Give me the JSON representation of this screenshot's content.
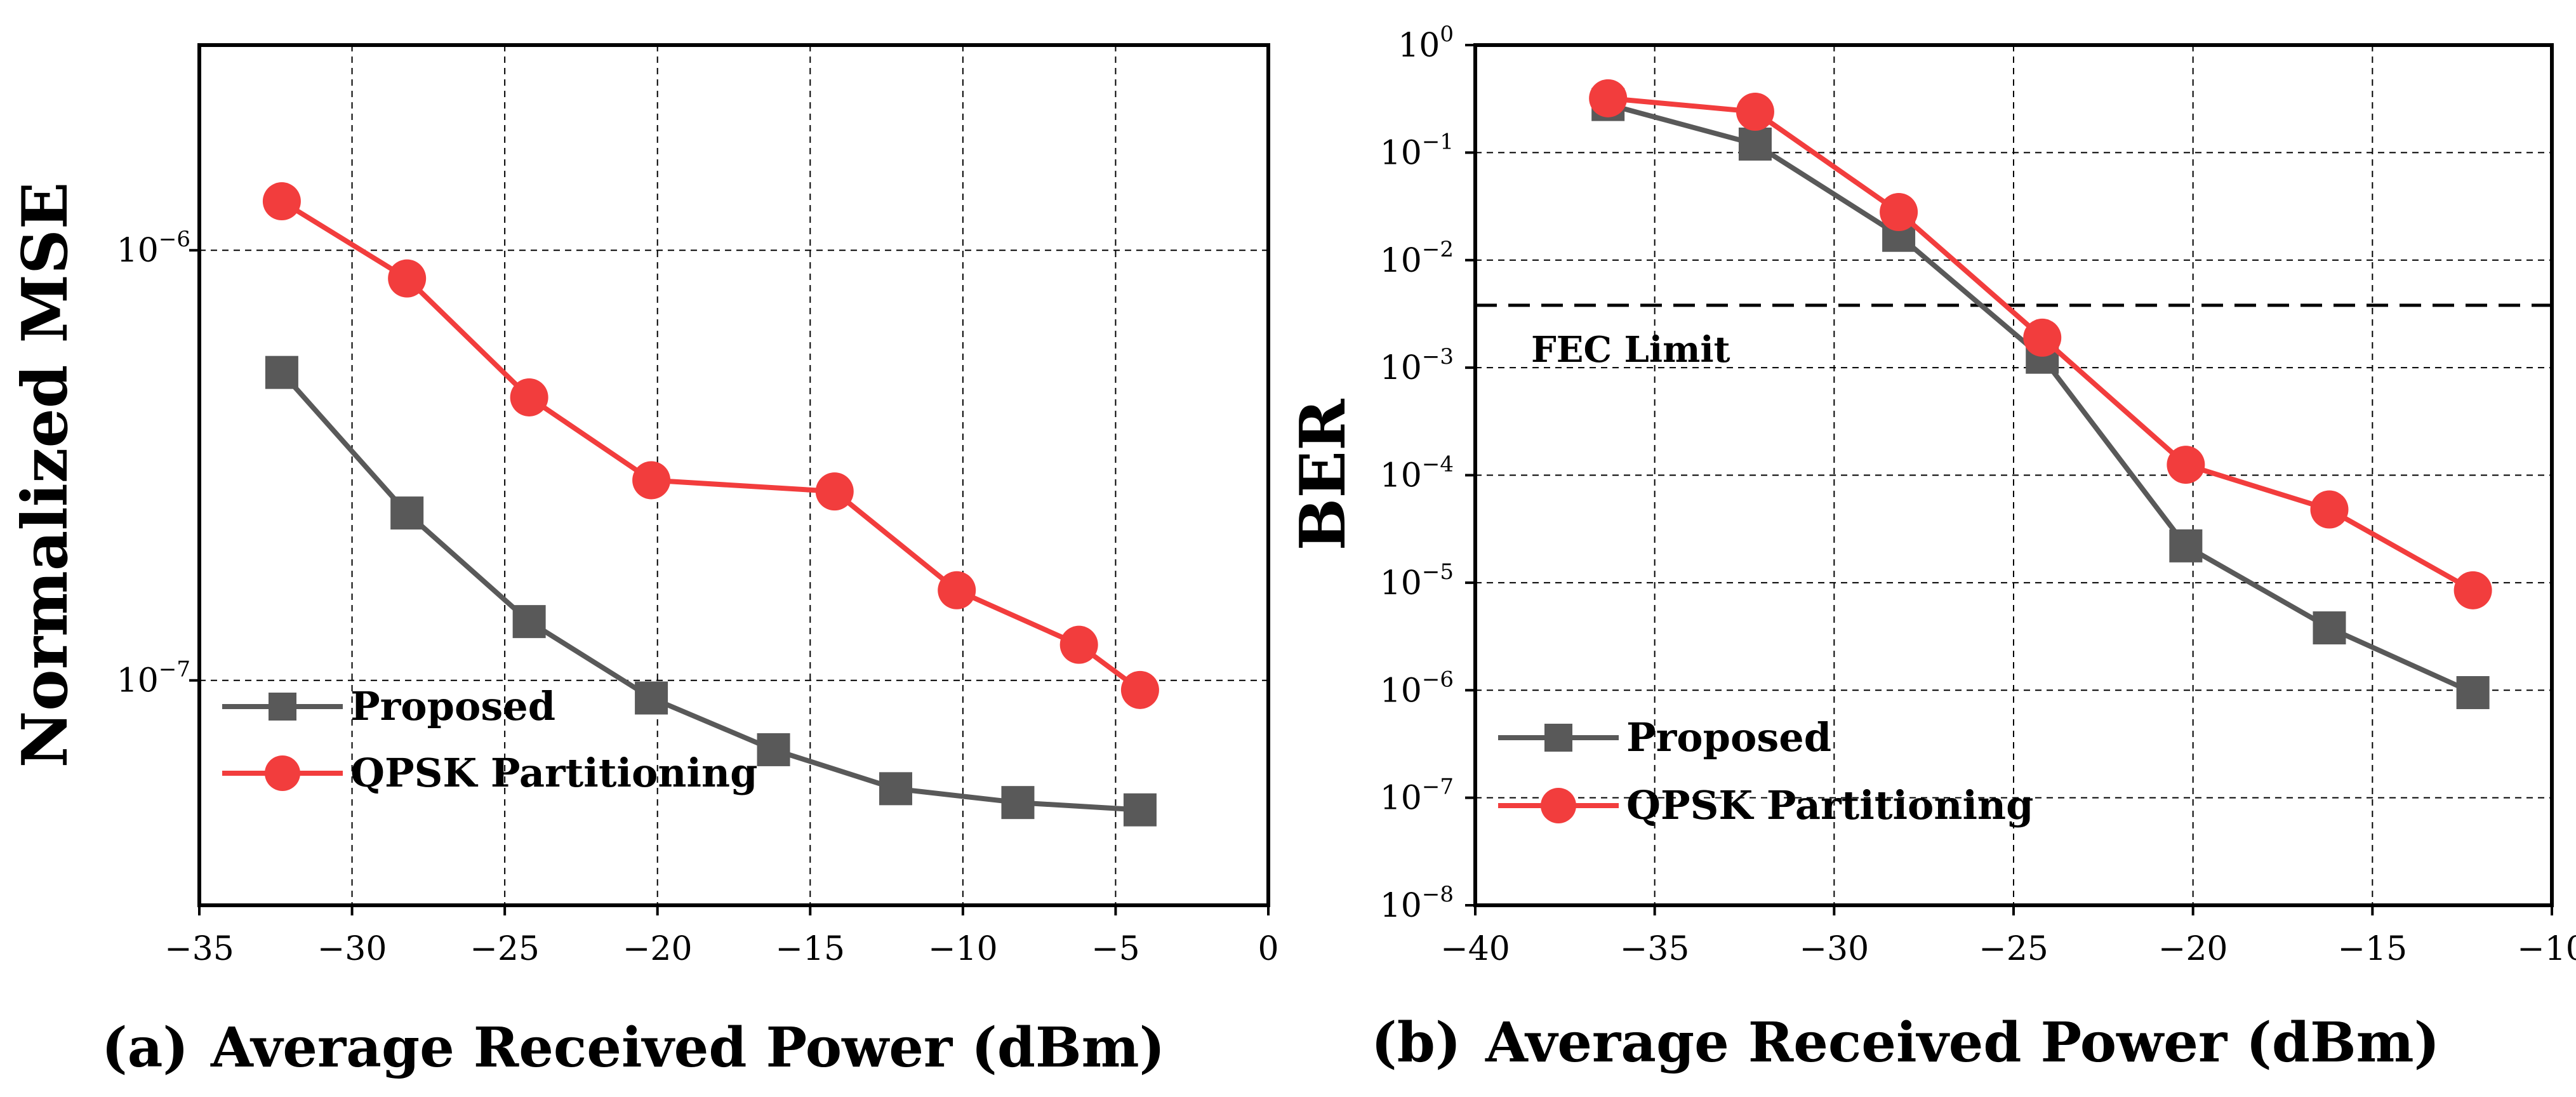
{
  "colors": {
    "proposed": "#595959",
    "qpsk": "#F23D3D",
    "axis": "#000000"
  },
  "chart_data": [
    {
      "id": "a",
      "type": "line",
      "panel_label": "(a)",
      "xlabel": "Average Received Power (dBm)",
      "ylabel": "Normalized MSE",
      "xscale": "linear",
      "yscale": "log",
      "xlim": [
        -35,
        0
      ],
      "ylim": [
        3e-08,
        3e-06
      ],
      "xticks": [
        -35,
        -30,
        -25,
        -20,
        -15,
        -10,
        -5,
        0
      ],
      "xtick_labels": [
        "−35",
        "−30",
        "−25",
        "−20",
        "−15",
        "−10",
        "−5",
        "0"
      ],
      "yticks": [
        {
          "value": 1e-06,
          "base": "10",
          "exp": "−6"
        },
        {
          "value": 1e-07,
          "base": "10",
          "exp": "−7"
        }
      ],
      "grid": true,
      "legend_position": "bottom-left",
      "series": [
        {
          "name": "Proposed",
          "marker": "square",
          "color_key": "proposed",
          "x": [
            -32.3,
            -28.2,
            -24.2,
            -20.2,
            -16.2,
            -12.2,
            -8.2,
            -4.2
          ],
          "y": [
            5.2e-07,
            2.45e-07,
            1.37e-07,
            9.1e-08,
            6.9e-08,
            5.6e-08,
            5.2e-08,
            5e-08
          ]
        },
        {
          "name": "QPSK Partitioning",
          "marker": "circle",
          "color_key": "qpsk",
          "x": [
            -32.3,
            -28.2,
            -24.2,
            -20.2,
            -14.2,
            -10.2,
            -6.2,
            -4.2
          ],
          "y": [
            1.3e-06,
            8.6e-07,
            4.55e-07,
            2.92e-07,
            2.75e-07,
            1.62e-07,
            1.21e-07,
            9.5e-08
          ]
        }
      ]
    },
    {
      "id": "b",
      "type": "line",
      "panel_label": "(b)",
      "xlabel": "Average Received Power (dBm)",
      "ylabel": "BER",
      "xscale": "linear",
      "yscale": "log",
      "xlim": [
        -40,
        -10
      ],
      "ylim": [
        1e-08,
        1
      ],
      "xticks": [
        -40,
        -35,
        -30,
        -25,
        -20,
        -15,
        -10
      ],
      "xtick_labels": [
        "−40",
        "−35",
        "−30",
        "−25",
        "−20",
        "−15",
        "−10"
      ],
      "yticks": [
        {
          "value": 1,
          "base": "10",
          "exp": "0"
        },
        {
          "value": 0.1,
          "base": "10",
          "exp": "−1"
        },
        {
          "value": 0.01,
          "base": "10",
          "exp": "−2"
        },
        {
          "value": 0.001,
          "base": "10",
          "exp": "−3"
        },
        {
          "value": 0.0001,
          "base": "10",
          "exp": "−4"
        },
        {
          "value": 1e-05,
          "base": "10",
          "exp": "−5"
        },
        {
          "value": 1e-06,
          "base": "10",
          "exp": "−6"
        },
        {
          "value": 1e-07,
          "base": "10",
          "exp": "−7"
        },
        {
          "value": 1e-08,
          "base": "10",
          "exp": "−8"
        }
      ],
      "grid": true,
      "legend_position": "bottom-left",
      "reference_line": {
        "label": "FEC Limit",
        "value": 0.0038
      },
      "series": [
        {
          "name": "Proposed",
          "marker": "square",
          "color_key": "proposed",
          "x": [
            -36.3,
            -32.2,
            -28.2,
            -24.2,
            -20.2,
            -16.2,
            -12.2
          ],
          "y": [
            0.28,
            0.12,
            0.017,
            0.00125,
            2.2e-05,
            3.8e-06,
            9.5e-07
          ]
        },
        {
          "name": "QPSK Partitioning",
          "marker": "circle",
          "color_key": "qpsk",
          "x": [
            -36.3,
            -32.2,
            -28.2,
            -24.2,
            -20.2,
            -16.2,
            -12.2
          ],
          "y": [
            0.32,
            0.24,
            0.028,
            0.0019,
            0.000125,
            4.8e-05,
            8.5e-06
          ]
        }
      ]
    }
  ]
}
